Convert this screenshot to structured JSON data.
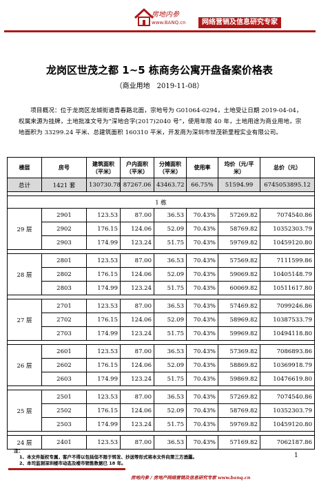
{
  "header": {
    "brand": "房地内参",
    "brand_url": "www.BANQ.cn",
    "tagline": "网络营销及信息研究专家"
  },
  "document": {
    "title": "龙岗区世茂之都 1~5 栋商务公寓开盘备案价格表",
    "subtitle": "（商业用地　2019-11-08）",
    "overview": "项目概况：位于龙岗区龙城街道青春路北面，宗地号为 G01064-0294，土地受让日期 2019-04-04，权属来源为挂牌，土地批准文号为“深地合字(2017)2040 号”，使用年限 40 年，土地用途为商业用地，宗地面积为 33299.24 平米、总建筑面积 160310 平米，开发商为深圳市世茂新里程实业有限公司。"
  },
  "table": {
    "headers": {
      "floor": "楼层",
      "room": "房号",
      "gross_area": "建筑面积（平米）",
      "inner_area": "户内面积（平米）",
      "shared_area": "分摊面积（平米）",
      "usage_rate": "使用率",
      "unit_price": "均价（元/平米）",
      "total_price": "总价（元）"
    },
    "total": {
      "label": "总计",
      "rooms": "1421 套",
      "gross_area": "130730.78",
      "inner_area": "87267.06",
      "shared_area": "43463.72",
      "usage_rate": "66.75%",
      "unit_price": "51594.99",
      "total_price": "6745053895.12"
    },
    "building_label": "1 栋",
    "floors": [
      {
        "floor": "29 层",
        "rows": [
          {
            "room": "2901",
            "gross": "123.53",
            "inner": "87.00",
            "shared": "36.53",
            "rate": "70.43%",
            "price": "57269.82",
            "total": "7074540.86"
          },
          {
            "room": "2902",
            "gross": "176.15",
            "inner": "124.06",
            "shared": "52.09",
            "rate": "70.43%",
            "price": "58769.82",
            "total": "10352303.79"
          },
          {
            "room": "2903",
            "gross": "174.99",
            "inner": "123.24",
            "shared": "51.75",
            "rate": "70.43%",
            "price": "59769.82",
            "total": "10459120.80"
          }
        ]
      },
      {
        "floor": "28 层",
        "rows": [
          {
            "room": "2801",
            "gross": "123.53",
            "inner": "87.00",
            "shared": "36.53",
            "rate": "70.43%",
            "price": "57569.82",
            "total": "7111599.86"
          },
          {
            "room": "2802",
            "gross": "176.15",
            "inner": "124.06",
            "shared": "52.09",
            "rate": "70.43%",
            "price": "59069.82",
            "total": "10405148.79"
          },
          {
            "room": "2803",
            "gross": "174.99",
            "inner": "123.24",
            "shared": "51.75",
            "rate": "70.43%",
            "price": "60069.82",
            "total": "10511617.80"
          }
        ]
      },
      {
        "floor": "27 层",
        "rows": [
          {
            "room": "2701",
            "gross": "123.53",
            "inner": "87.00",
            "shared": "36.53",
            "rate": "70.43%",
            "price": "57469.82",
            "total": "7099246.86"
          },
          {
            "room": "2702",
            "gross": "176.15",
            "inner": "124.06",
            "shared": "52.09",
            "rate": "70.43%",
            "price": "58969.82",
            "total": "10387533.79"
          },
          {
            "room": "2703",
            "gross": "174.99",
            "inner": "123.24",
            "shared": "51.75",
            "rate": "70.43%",
            "price": "59969.82",
            "total": "10494118.80"
          }
        ]
      },
      {
        "floor": "26 层",
        "rows": [
          {
            "room": "2601",
            "gross": "123.53",
            "inner": "87.00",
            "shared": "36.53",
            "rate": "70.43%",
            "price": "57369.82",
            "total": "7086893.86"
          },
          {
            "room": "2602",
            "gross": "176.15",
            "inner": "124.06",
            "shared": "52.09",
            "rate": "70.43%",
            "price": "58869.82",
            "total": "10369918.79"
          },
          {
            "room": "2603",
            "gross": "174.99",
            "inner": "123.24",
            "shared": "51.75",
            "rate": "70.43%",
            "price": "59869.82",
            "total": "10476619.80"
          }
        ]
      },
      {
        "floor": "25 层",
        "rows": [
          {
            "room": "2501",
            "gross": "123.53",
            "inner": "87.00",
            "shared": "36.53",
            "rate": "70.43%",
            "price": "57269.82",
            "total": "7074540.86"
          },
          {
            "room": "2502",
            "gross": "176.15",
            "inner": "124.06",
            "shared": "52.09",
            "rate": "70.43%",
            "price": "58769.82",
            "total": "10352303.79"
          },
          {
            "room": "2503",
            "gross": "174.99",
            "inner": "123.24",
            "shared": "51.75",
            "rate": "70.43%",
            "price": "59769.82",
            "total": "10459120.80"
          }
        ]
      },
      {
        "floor": "24 层",
        "rows": [
          {
            "room": "2401",
            "gross": "123.53",
            "inner": "87.00",
            "shared": "36.53",
            "rate": "70.43%",
            "price": "57169.82",
            "total": "7062187.86"
          }
        ]
      }
    ]
  },
  "notes": {
    "label": "注：",
    "items": [
      "1、本文件版权专属，客户不得以包括但不限于转发、抄送等形式将本文件向第三方透露。",
      "2、本司监测深圳楼市动态及楼市销售数据已 18 年。"
    ]
  },
  "page_number": "1",
  "footer": "房地内参 / 房地产网络营销及信息研究专家 www.banq.cn",
  "colors": {
    "brand_red": "#b01818",
    "total_row": "#d9d9d9"
  }
}
